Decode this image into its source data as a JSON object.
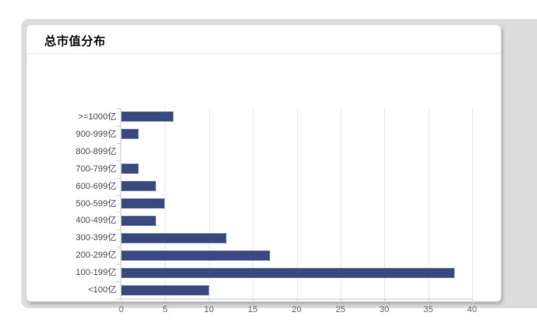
{
  "card": {
    "title": "总市值分布"
  },
  "chart_data": {
    "type": "bar",
    "orientation": "horizontal",
    "title": "总市值分布",
    "categories": [
      "&gt;=1000亿",
      "900-999亿",
      "800-899亿",
      "700-799亿",
      "600-699亿",
      "500-599亿",
      "400-499亿",
      "300-399亿",
      "200-299亿",
      "100-199亿",
      "&lt;100亿"
    ],
    "categories_plain": [
      ">=1000亿",
      "900-999亿",
      "800-899亿",
      "700-799亿",
      "600-699亿",
      "500-599亿",
      "400-499亿",
      "300-399亿",
      "200-299亿",
      "100-199亿",
      "<100亿"
    ],
    "values": [
      6,
      2,
      0,
      2,
      4,
      5,
      4,
      12,
      17,
      38,
      10
    ],
    "xlabel": "",
    "ylabel": "",
    "xlim": [
      0,
      40
    ],
    "x_ticks": [
      0,
      5,
      10,
      15,
      20,
      25,
      30,
      35,
      40
    ],
    "grid": "vertical",
    "legend": "none",
    "colors": {
      "bar_fill": "#3a4a7e",
      "bar_border": "#7380aa",
      "gridline": "#e8e8e8",
      "axis_line": "#c9d3ea",
      "tick_label": "#666670",
      "category_label": "#4c4c55",
      "title_text": "#111111",
      "card_bg": "#ffffff",
      "frame_bg": "#dcdcdc"
    }
  }
}
